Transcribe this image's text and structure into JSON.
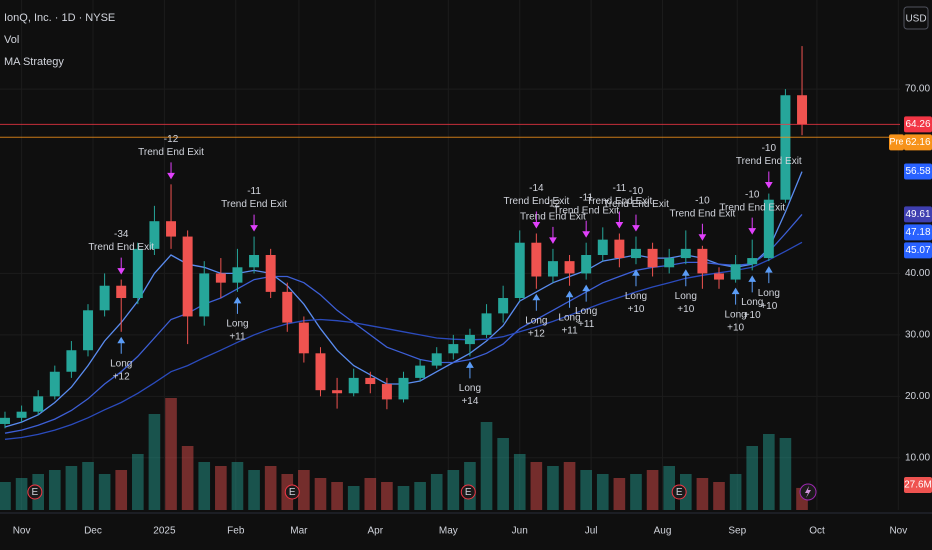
{
  "chart_data": {
    "type": "candlestick",
    "title": "IonQ, Inc. · 1D · NYSE",
    "legend": [
      "Vol",
      "MA Strategy"
    ],
    "currency": "USD",
    "x": [
      -1,
      0,
      1,
      2,
      3,
      4,
      5,
      6,
      7,
      8,
      9,
      10,
      11,
      12,
      13,
      14,
      15,
      16,
      17,
      18,
      19,
      20,
      21,
      22,
      23,
      24,
      25,
      26,
      27,
      28,
      29,
      30,
      31,
      32,
      33,
      34,
      35,
      36,
      37,
      38,
      39,
      40,
      41,
      42,
      43,
      44,
      45,
      46,
      47
    ],
    "open": [
      15.5,
      16.5,
      17.5,
      20,
      24,
      27.5,
      34,
      38,
      36,
      44,
      48.5,
      46,
      33,
      40,
      38.5,
      41,
      43,
      37,
      32,
      27,
      21,
      20.5,
      23,
      22,
      19.5,
      23,
      25,
      27,
      28.5,
      30,
      33.5,
      36,
      45,
      39.5,
      42,
      40,
      43,
      45.5,
      42.5,
      44,
      41,
      42.5,
      44,
      40,
      39,
      41.5,
      42.5,
      52,
      69
    ],
    "high": [
      17.5,
      18.5,
      21,
      25,
      29,
      35,
      40,
      39,
      45,
      51,
      54.5,
      47,
      42,
      42.5,
      44,
      46,
      44,
      38.5,
      33,
      28,
      23,
      24.5,
      24,
      23,
      24,
      26,
      28,
      30,
      31,
      35,
      38,
      47,
      46.5,
      44,
      43,
      45,
      47.5,
      46.5,
      46,
      45,
      44,
      47,
      44.5,
      41,
      43,
      45.5,
      53,
      70,
      77
    ],
    "low": [
      14.8,
      15.8,
      17,
      19.5,
      23,
      26.5,
      33,
      30.5,
      35,
      43,
      44,
      28.5,
      31.5,
      36,
      37,
      40,
      36,
      30.5,
      25.5,
      20,
      18,
      20,
      20.5,
      17.9,
      19,
      22.5,
      24.5,
      26,
      26.5,
      29.5,
      32,
      35.5,
      37.5,
      38.5,
      38,
      39,
      42,
      41,
      41.5,
      39.5,
      40,
      41.5,
      37.5,
      37.5,
      38.5,
      40.5,
      42,
      51.5,
      62.5
    ],
    "close": [
      16.5,
      17.5,
      20,
      24,
      27.5,
      34,
      38,
      36,
      44,
      48.5,
      46,
      33,
      40,
      38.5,
      41,
      43,
      37,
      32,
      27,
      21,
      20.5,
      23,
      22,
      19.5,
      23,
      25,
      27,
      28.5,
      30,
      33.5,
      36,
      45,
      39.5,
      42,
      40,
      43,
      45.5,
      42.5,
      44,
      41,
      42.5,
      44,
      40,
      39,
      41.5,
      42.5,
      52,
      69,
      64.26
    ],
    "up_color": "#26a69a",
    "down_color": "#ef5350",
    "volume": [
      35,
      40,
      45,
      50,
      55,
      60,
      45,
      50,
      70,
      120,
      140,
      80,
      60,
      55,
      60,
      50,
      55,
      45,
      50,
      40,
      35,
      30,
      40,
      35,
      30,
      35,
      45,
      50,
      60,
      110,
      90,
      70,
      60,
      55,
      60,
      50,
      45,
      40,
      45,
      50,
      55,
      45,
      40,
      35,
      45,
      80,
      95,
      90,
      27.6
    ],
    "vlim": [
      0,
      150
    ],
    "volume_label": "27.6M",
    "series": [
      {
        "color": "#5a8cf0",
        "values": [
          15,
          15.8,
          17,
          19,
          21.5,
          25,
          29,
          32,
          35.5,
          40,
          43,
          41.5,
          41,
          40,
          40,
          40.5,
          40,
          38,
          35,
          31,
          27.5,
          25,
          23.5,
          22,
          22,
          22.5,
          24,
          25.5,
          27,
          29,
          31.5,
          35.5,
          37,
          38.5,
          39.5,
          40.5,
          42,
          42.5,
          43,
          42.5,
          42.5,
          43,
          42.5,
          41.5,
          41,
          41.5,
          44,
          50,
          56.58
        ]
      },
      {
        "color": "#3d5fd6",
        "values": [
          14,
          14.5,
          15.3,
          16.3,
          17.7,
          19.6,
          22,
          24,
          26.5,
          29.5,
          32.5,
          33.5,
          35,
          36,
          37.5,
          39,
          39.5,
          39.5,
          38.5,
          36.5,
          34,
          32,
          30,
          28,
          27,
          26,
          25.5,
          25.5,
          26,
          27,
          28.5,
          31,
          32.5,
          34,
          35.5,
          37,
          38.5,
          39.5,
          40.5,
          41,
          41.3,
          41.8,
          41.8,
          41.5,
          41.3,
          41.6,
          43.5,
          46.5,
          49.61
        ]
      },
      {
        "color": "#2b4bbd",
        "values": [
          13,
          13.3,
          13.8,
          14.5,
          15.4,
          16.5,
          17.8,
          19,
          20.5,
          22.2,
          24,
          25,
          26.3,
          27.5,
          28.8,
          30,
          31,
          31.8,
          32.3,
          32.5,
          32.3,
          32,
          31.5,
          31,
          30.5,
          30,
          29.5,
          29.3,
          29.2,
          29.3,
          29.7,
          30.5,
          31.3,
          32.2,
          33.2,
          34.2,
          35.2,
          36.1,
          37,
          37.8,
          38.5,
          39.2,
          39.7,
          40.1,
          40.5,
          41,
          42.2,
          43.6,
          45.07
        ]
      }
    ],
    "price_tags": [
      {
        "value": 64.26,
        "color": "#f23645",
        "line": true
      },
      {
        "value": 62.16,
        "color": "#f7931a",
        "label": "Pre",
        "line": true
      },
      {
        "value": 56.58,
        "color": "#2962ff"
      },
      {
        "value": 49.61,
        "color": "#3f3fb0"
      },
      {
        "value": 47.18,
        "color": "#2962ff"
      },
      {
        "value": 45.07,
        "color": "#2962ff"
      }
    ],
    "xlim": [
      -1.3,
      52.9
    ],
    "ylim": [
      1.5,
      84.5
    ],
    "yticks": [
      {
        "value": 10,
        "label": "10.00"
      },
      {
        "value": 20,
        "label": "20.00"
      },
      {
        "value": 30,
        "label": "30.00"
      },
      {
        "value": 40,
        "label": "40.00"
      },
      {
        "value": 70,
        "label": "70.00"
      }
    ],
    "xticks": [
      {
        "value": 0,
        "label": "Nov"
      },
      {
        "value": 4.3,
        "label": "Dec"
      },
      {
        "value": 8.6,
        "label": "2025"
      },
      {
        "value": 12.9,
        "label": "Feb"
      },
      {
        "value": 16.7,
        "label": "Mar"
      },
      {
        "value": 21.3,
        "label": "Apr"
      },
      {
        "value": 25.7,
        "label": "May"
      },
      {
        "value": 30,
        "label": "Jun"
      },
      {
        "value": 34.3,
        "label": "Jul"
      },
      {
        "value": 38.6,
        "label": "Aug"
      },
      {
        "value": 43.1,
        "label": "Sep"
      },
      {
        "value": 47.9,
        "label": "Oct"
      },
      {
        "value": 52.8,
        "label": "Nov"
      }
    ],
    "grid": true,
    "earnings": {
      "label": "E",
      "x": [
        0.8,
        16.3,
        26.9,
        39.6
      ]
    },
    "signals": [
      {
        "kind": "exit",
        "x": 6,
        "label": "Trend End Exit",
        "qty": "-34"
      },
      {
        "kind": "long",
        "x": 6,
        "label": "Long",
        "qty": "+12"
      },
      {
        "kind": "exit",
        "x": 9,
        "label": "Trend End Exit",
        "qty": "-12"
      },
      {
        "kind": "long",
        "x": 13,
        "label": "Long",
        "qty": "+11"
      },
      {
        "kind": "exit",
        "x": 14,
        "label": "Trend End Exit",
        "qty": "-11"
      },
      {
        "kind": "long",
        "x": 27,
        "label": "Long",
        "qty": "+14"
      },
      {
        "kind": "exit",
        "x": 31,
        "label": "Trend End Exit",
        "qty": "-14"
      },
      {
        "kind": "long",
        "x": 31,
        "label": "Long",
        "qty": "+12"
      },
      {
        "kind": "exit",
        "x": 32,
        "label": "Trend End Exit",
        "qty": "-12"
      },
      {
        "kind": "long",
        "x": 33,
        "label": "Long",
        "qty": "+11"
      },
      {
        "kind": "exit",
        "x": 34,
        "label": "Trend End Exit",
        "qty": "-11"
      },
      {
        "kind": "long",
        "x": 34,
        "label": "Long",
        "qty": "+11"
      },
      {
        "kind": "exit",
        "x": 36,
        "label": "Trend End Exit",
        "qty": "-11"
      },
      {
        "kind": "exit",
        "x": 37,
        "label": "Trend End Exit",
        "qty": "-10"
      },
      {
        "kind": "long",
        "x": 37,
        "label": "Long",
        "qty": "+10"
      },
      {
        "kind": "long",
        "x": 40,
        "label": "Long",
        "qty": "+10"
      },
      {
        "kind": "exit",
        "x": 41,
        "label": "Trend End Exit",
        "qty": "-10"
      },
      {
        "kind": "long",
        "x": 43,
        "label": "Long",
        "qty": "+10"
      },
      {
        "kind": "exit",
        "x": 44,
        "label": "Trend End Exit",
        "qty": "-10"
      },
      {
        "kind": "long",
        "x": 44,
        "label": "Long",
        "qty": "+10"
      },
      {
        "kind": "exit",
        "x": 45,
        "label": "Trend End Exit",
        "qty": "-10"
      },
      {
        "kind": "long",
        "x": 45,
        "label": "Long",
        "qty": "+10"
      }
    ]
  }
}
